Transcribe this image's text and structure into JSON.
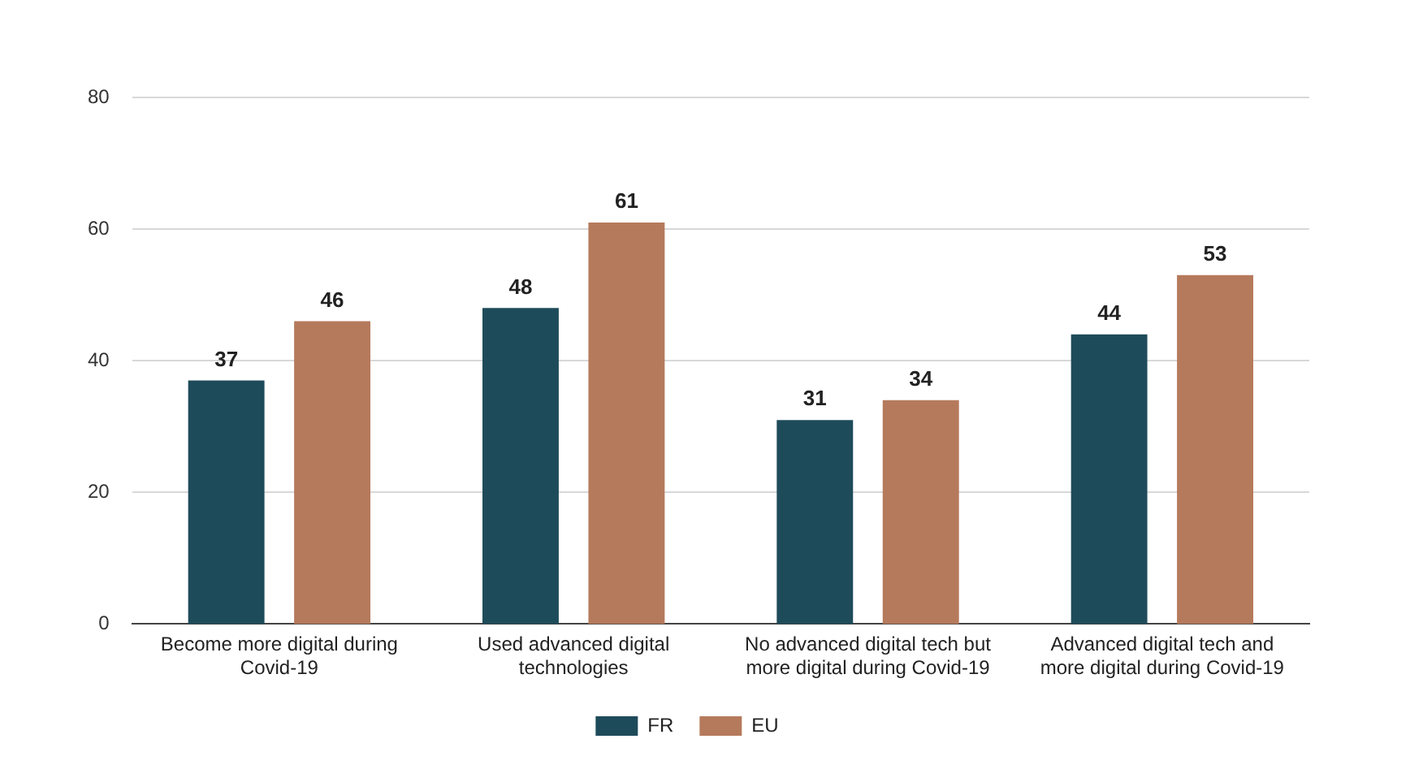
{
  "chart_data": {
    "type": "bar",
    "categories": [
      "Become more digital during Covid-19",
      "Used advanced digital technologies",
      "No advanced digital tech but more digital during Covid-19",
      "Advanced digital tech and more digital during Covid-19"
    ],
    "series": [
      {
        "name": "FR",
        "color": "#1e4b5a",
        "values": [
          37,
          48,
          31,
          44
        ]
      },
      {
        "name": "EU",
        "color": "#b57a5c",
        "values": [
          46,
          61,
          34,
          53
        ]
      }
    ],
    "ylim": [
      0,
      80
    ],
    "yticks": [
      0,
      20,
      40,
      60,
      80
    ],
    "grid": "y",
    "legend": "bottom",
    "data_labels": true
  }
}
